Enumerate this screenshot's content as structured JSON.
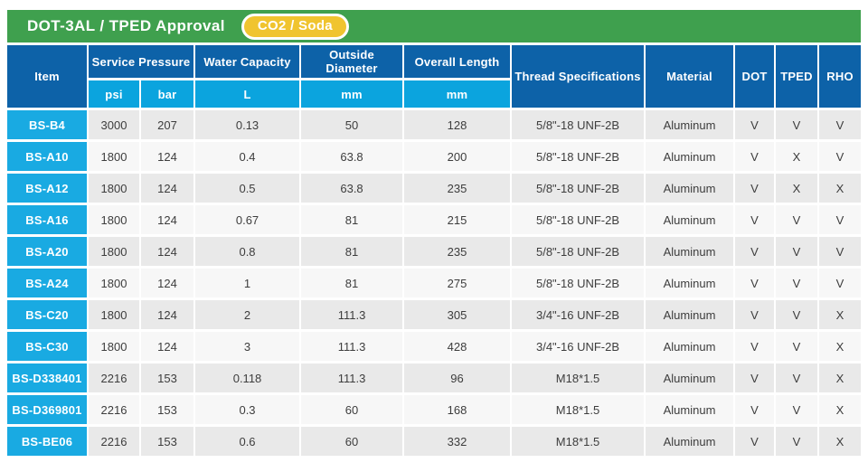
{
  "title_bar": {
    "title": "DOT-3AL / TPED Approval",
    "badge": "CO2 / Soda"
  },
  "table": {
    "columns": {
      "item": "Item",
      "service_pressure": "Service Pressure",
      "psi": "psi",
      "bar": "bar",
      "water_capacity": "Water Capacity",
      "water_capacity_unit": "L",
      "outside_diameter": "Outside Diameter",
      "outside_diameter_unit": "mm",
      "overall_length": "Overall Length",
      "overall_length_unit": "mm",
      "thread_specifications": "Thread Specifications",
      "material": "Material",
      "dot": "DOT",
      "tped": "TPED",
      "rho": "RHO"
    },
    "rows": [
      {
        "item": "BS-B4",
        "psi": "3000",
        "bar": "207",
        "water_capacity_l": "0.13",
        "outside_diameter_mm": "50",
        "overall_length_mm": "128",
        "thread": "5/8\"-18 UNF-2B",
        "material": "Aluminum",
        "dot": "V",
        "tped": "V",
        "rho": "V"
      },
      {
        "item": "BS-A10",
        "psi": "1800",
        "bar": "124",
        "water_capacity_l": "0.4",
        "outside_diameter_mm": "63.8",
        "overall_length_mm": "200",
        "thread": "5/8\"-18 UNF-2B",
        "material": "Aluminum",
        "dot": "V",
        "tped": "X",
        "rho": "V"
      },
      {
        "item": "BS-A12",
        "psi": "1800",
        "bar": "124",
        "water_capacity_l": "0.5",
        "outside_diameter_mm": "63.8",
        "overall_length_mm": "235",
        "thread": "5/8\"-18 UNF-2B",
        "material": "Aluminum",
        "dot": "V",
        "tped": "X",
        "rho": "X"
      },
      {
        "item": "BS-A16",
        "psi": "1800",
        "bar": "124",
        "water_capacity_l": "0.67",
        "outside_diameter_mm": "81",
        "overall_length_mm": "215",
        "thread": "5/8\"-18 UNF-2B",
        "material": "Aluminum",
        "dot": "V",
        "tped": "V",
        "rho": "V"
      },
      {
        "item": "BS-A20",
        "psi": "1800",
        "bar": "124",
        "water_capacity_l": "0.8",
        "outside_diameter_mm": "81",
        "overall_length_mm": "235",
        "thread": "5/8\"-18 UNF-2B",
        "material": "Aluminum",
        "dot": "V",
        "tped": "V",
        "rho": "V"
      },
      {
        "item": "BS-A24",
        "psi": "1800",
        "bar": "124",
        "water_capacity_l": "1",
        "outside_diameter_mm": "81",
        "overall_length_mm": "275",
        "thread": "5/8\"-18 UNF-2B",
        "material": "Aluminum",
        "dot": "V",
        "tped": "V",
        "rho": "V"
      },
      {
        "item": "BS-C20",
        "psi": "1800",
        "bar": "124",
        "water_capacity_l": "2",
        "outside_diameter_mm": "111.3",
        "overall_length_mm": "305",
        "thread": "3/4\"-16 UNF-2B",
        "material": "Aluminum",
        "dot": "V",
        "tped": "V",
        "rho": "X"
      },
      {
        "item": "BS-C30",
        "psi": "1800",
        "bar": "124",
        "water_capacity_l": "3",
        "outside_diameter_mm": "111.3",
        "overall_length_mm": "428",
        "thread": "3/4\"-16 UNF-2B",
        "material": "Aluminum",
        "dot": "V",
        "tped": "V",
        "rho": "X"
      },
      {
        "item": "BS-D338401",
        "psi": "2216",
        "bar": "153",
        "water_capacity_l": "0.118",
        "outside_diameter_mm": "111.3",
        "overall_length_mm": "96",
        "thread": "M18*1.5",
        "material": "Aluminum",
        "dot": "V",
        "tped": "V",
        "rho": "X"
      },
      {
        "item": "BS-D369801",
        "psi": "2216",
        "bar": "153",
        "water_capacity_l": "0.3",
        "outside_diameter_mm": "60",
        "overall_length_mm": "168",
        "thread": "M18*1.5",
        "material": "Aluminum",
        "dot": "V",
        "tped": "V",
        "rho": "X"
      },
      {
        "item": "BS-BE06",
        "psi": "2216",
        "bar": "153",
        "water_capacity_l": "0.6",
        "outside_diameter_mm": "60",
        "overall_length_mm": "332",
        "thread": "M18*1.5",
        "material": "Aluminum",
        "dot": "V",
        "tped": "V",
        "rho": "X"
      }
    ]
  },
  "colors": {
    "header_green": "#3fa04e",
    "badge_yellow": "#f0c42f",
    "header_dark_blue": "#0d62a8",
    "subheader_cyan": "#0ba4de",
    "item_cyan": "#19aae2",
    "row_gray": "#e9e9e9",
    "row_light": "#f7f7f7",
    "body_text": "#3d3d3d"
  }
}
